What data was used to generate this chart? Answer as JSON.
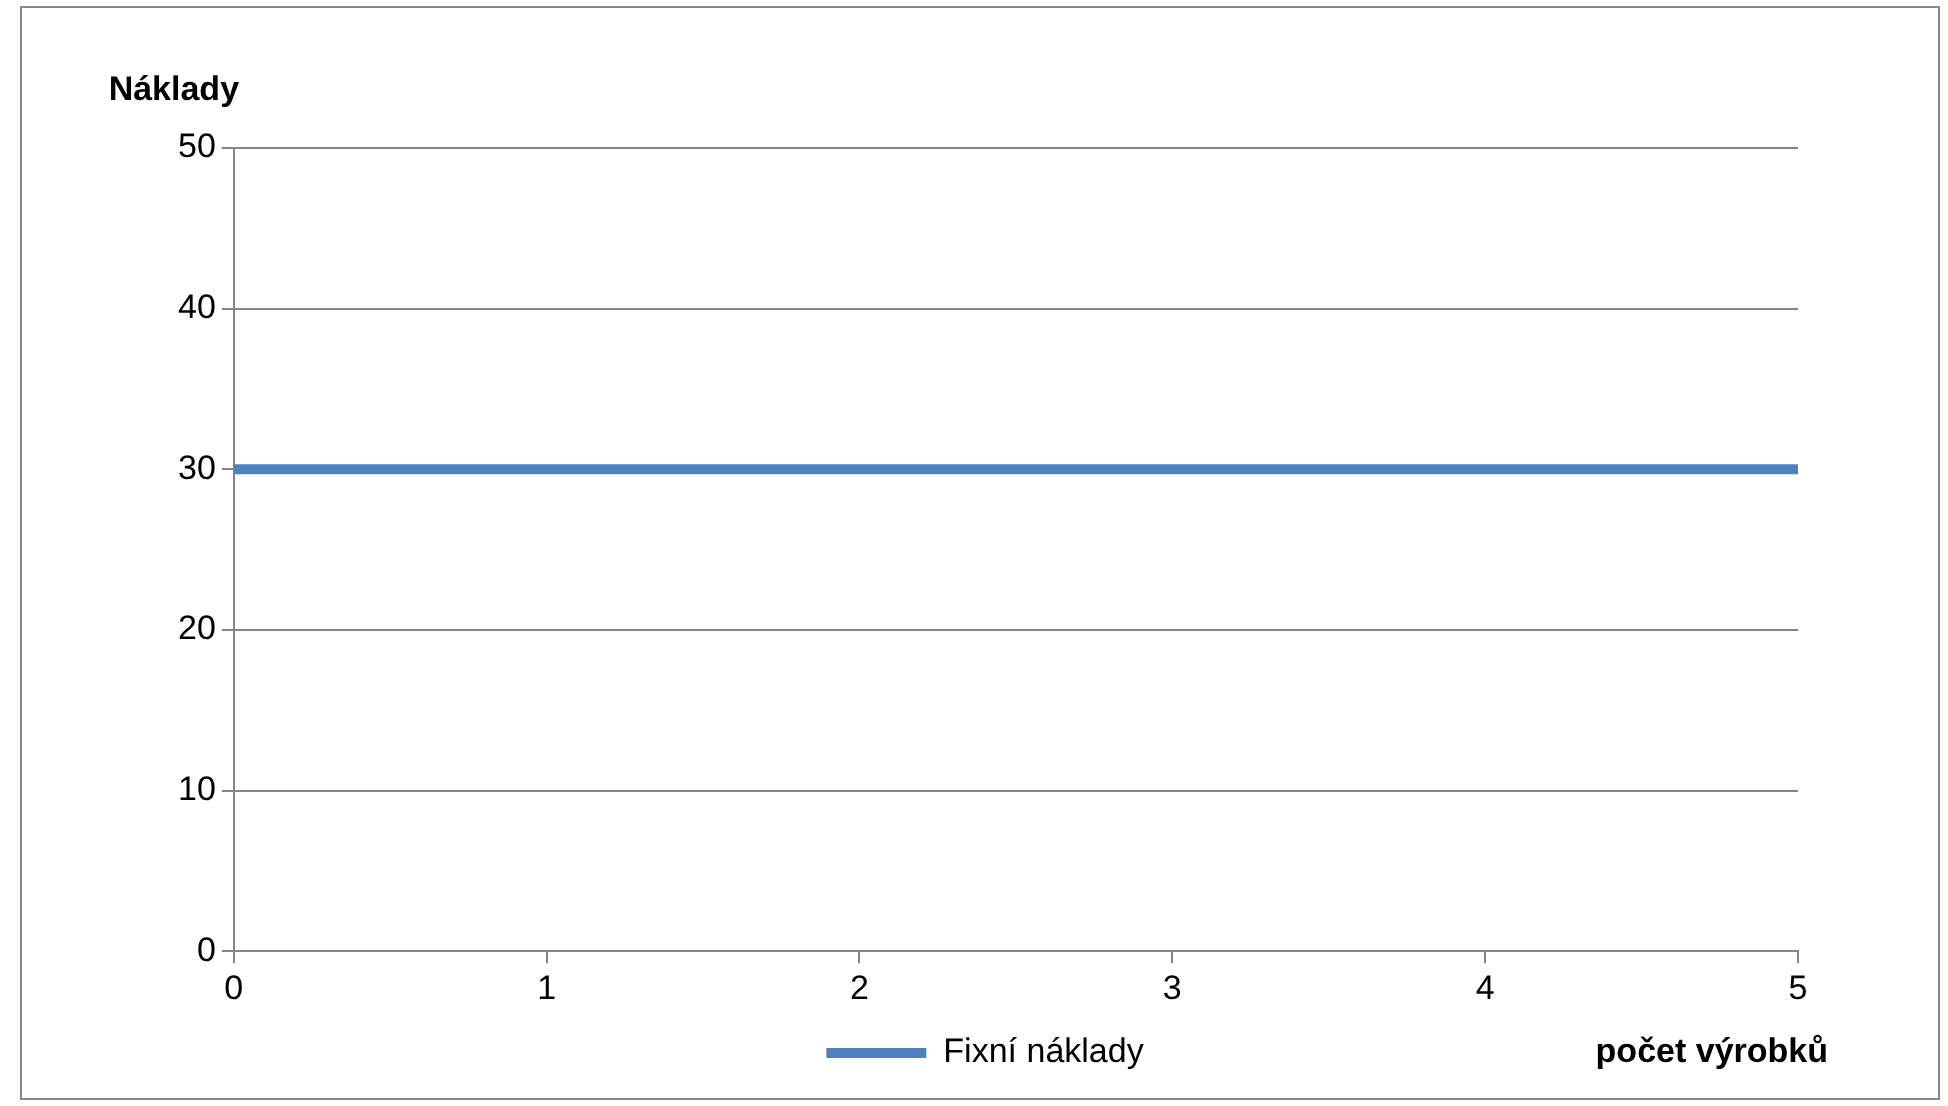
{
  "chart_data": {
    "type": "line",
    "xlabel": "počet výrobků",
    "ylabel": "Náklady",
    "x": [
      0,
      5
    ],
    "series": [
      {
        "name": "Fixní náklady",
        "color": "#4f81bd",
        "values": [
          30,
          30
        ]
      }
    ],
    "xlim": [
      0,
      5
    ],
    "xticks": [
      0,
      1,
      2,
      3,
      4,
      5
    ],
    "ylim": [
      0,
      50
    ],
    "yticks": [
      0,
      10,
      20,
      30,
      40,
      50
    ],
    "grid": "y",
    "legend": "bottom",
    "marker": "none",
    "line_style": "solid"
  }
}
